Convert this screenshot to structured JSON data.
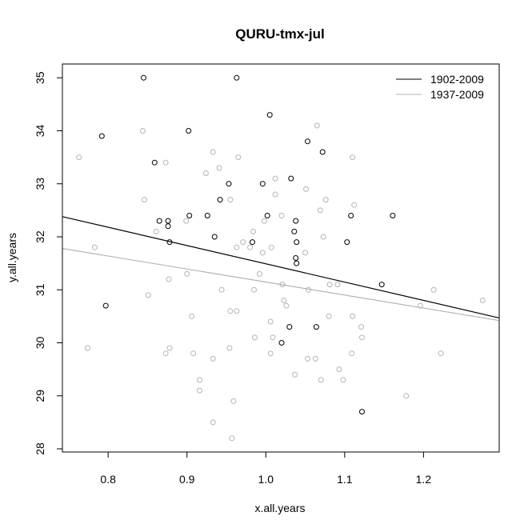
{
  "chart_data": {
    "type": "scatter",
    "title": "QURU-tmx-jul",
    "xlabel": "x.all.years",
    "ylabel": "y.all.years",
    "xlim": [
      0.742,
      1.296
    ],
    "ylim": [
      27.94,
      35.26
    ],
    "xticks": [
      "0.8",
      "0.9",
      "1.0",
      "1.1",
      "1.2"
    ],
    "yticks": [
      "28",
      "29",
      "30",
      "31",
      "32",
      "33",
      "34",
      "35"
    ],
    "grid": false,
    "legend_position": "top-right",
    "colors": {
      "series_1902": "#000000",
      "series_1937": "#b4b4b4"
    },
    "series": [
      {
        "name": "1902-2009",
        "color": "#000000",
        "points": [
          [
            0.845,
            35.0
          ],
          [
            0.963,
            35.0
          ],
          [
            0.792,
            33.9
          ],
          [
            1.005,
            34.3
          ],
          [
            0.902,
            34.0
          ],
          [
            1.053,
            33.8
          ],
          [
            1.072,
            33.6
          ],
          [
            0.859,
            33.4
          ],
          [
            0.953,
            33.0
          ],
          [
            0.996,
            33.0
          ],
          [
            1.032,
            33.1
          ],
          [
            0.942,
            32.7
          ],
          [
            0.865,
            32.3
          ],
          [
            0.876,
            32.3
          ],
          [
            0.876,
            32.2
          ],
          [
            0.903,
            32.4
          ],
          [
            0.926,
            32.4
          ],
          [
            1.002,
            32.4
          ],
          [
            1.038,
            32.3
          ],
          [
            1.108,
            32.4
          ],
          [
            1.161,
            32.4
          ],
          [
            0.935,
            32.0
          ],
          [
            0.878,
            31.9
          ],
          [
            0.983,
            31.9
          ],
          [
            1.036,
            32.1
          ],
          [
            1.039,
            31.9
          ],
          [
            1.103,
            31.9
          ],
          [
            1.038,
            31.6
          ],
          [
            1.039,
            31.5
          ],
          [
            1.147,
            31.1
          ],
          [
            0.797,
            30.7
          ],
          [
            1.03,
            30.3
          ],
          [
            1.064,
            30.3
          ],
          [
            1.02,
            30.0
          ],
          [
            1.122,
            28.7
          ]
        ],
        "fit_line": {
          "x": [
            0.742,
            1.296
          ],
          "y": [
            32.38,
            30.47
          ]
        }
      },
      {
        "name": "1937-2009",
        "color": "#b4b4b4",
        "points": [
          [
            0.763,
            33.5
          ],
          [
            0.844,
            34.0
          ],
          [
            1.065,
            34.1
          ],
          [
            0.873,
            33.4
          ],
          [
            0.933,
            33.6
          ],
          [
            0.941,
            33.3
          ],
          [
            0.924,
            33.2
          ],
          [
            0.965,
            33.5
          ],
          [
            1.012,
            33.1
          ],
          [
            1.11,
            33.5
          ],
          [
            0.846,
            32.7
          ],
          [
            0.955,
            32.7
          ],
          [
            1.012,
            32.8
          ],
          [
            1.051,
            32.9
          ],
          [
            1.076,
            32.7
          ],
          [
            1.069,
            32.5
          ],
          [
            1.112,
            32.6
          ],
          [
            0.899,
            32.3
          ],
          [
            0.998,
            32.3
          ],
          [
            1.02,
            32.4
          ],
          [
            0.861,
            32.1
          ],
          [
            0.984,
            32.1
          ],
          [
            0.971,
            31.9
          ],
          [
            0.963,
            31.8
          ],
          [
            0.98,
            31.8
          ],
          [
            1.007,
            31.8
          ],
          [
            1.05,
            31.7
          ],
          [
            1.073,
            32.0
          ],
          [
            0.783,
            31.8
          ],
          [
            0.996,
            31.7
          ],
          [
            0.877,
            31.2
          ],
          [
            0.9,
            31.3
          ],
          [
            0.992,
            31.3
          ],
          [
            1.021,
            31.1
          ],
          [
            1.081,
            31.1
          ],
          [
            1.091,
            31.1
          ],
          [
            0.985,
            31.0
          ],
          [
            1.054,
            31.0
          ],
          [
            0.944,
            31.0
          ],
          [
            0.851,
            30.9
          ],
          [
            1.023,
            30.8
          ],
          [
            1.026,
            30.7
          ],
          [
            1.08,
            30.5
          ],
          [
            1.11,
            30.5
          ],
          [
            1.196,
            30.7
          ],
          [
            1.213,
            31.0
          ],
          [
            1.275,
            30.8
          ],
          [
            0.906,
            30.5
          ],
          [
            0.955,
            30.6
          ],
          [
            0.963,
            30.6
          ],
          [
            1.006,
            30.4
          ],
          [
            1.121,
            30.3
          ],
          [
            1.122,
            30.1
          ],
          [
            0.774,
            29.9
          ],
          [
            0.873,
            29.8
          ],
          [
            0.878,
            29.9
          ],
          [
            0.908,
            29.8
          ],
          [
            0.954,
            29.9
          ],
          [
            1.006,
            29.8
          ],
          [
            1.053,
            29.7
          ],
          [
            1.063,
            29.7
          ],
          [
            1.109,
            29.8
          ],
          [
            1.222,
            29.8
          ],
          [
            0.986,
            30.1
          ],
          [
            1.009,
            30.1
          ],
          [
            0.933,
            29.7
          ],
          [
            1.037,
            29.4
          ],
          [
            1.07,
            29.3
          ],
          [
            1.093,
            29.5
          ],
          [
            1.098,
            29.3
          ],
          [
            0.916,
            29.3
          ],
          [
            0.916,
            29.1
          ],
          [
            0.959,
            28.9
          ],
          [
            1.178,
            29.0
          ],
          [
            0.933,
            28.5
          ],
          [
            0.957,
            28.2
          ]
        ],
        "fit_line": {
          "x": [
            0.742,
            1.296
          ],
          "y": [
            31.78,
            30.42
          ]
        }
      }
    ]
  }
}
